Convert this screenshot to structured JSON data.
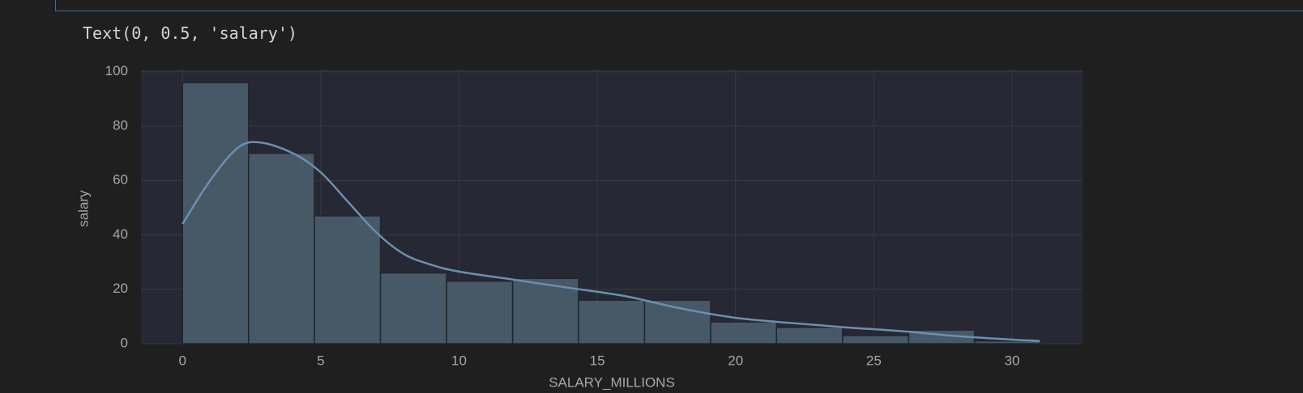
{
  "output_text": "Text(0, 0.5, 'salary')",
  "chart_data": {
    "type": "histogram",
    "x_label": "SALARY_MILLIONS",
    "y_label": "salary",
    "bins": [
      0,
      2.39,
      4.77,
      7.16,
      9.55,
      11.94,
      14.32,
      16.71,
      19.1,
      21.48,
      23.87,
      26.26,
      28.64,
      31.03
    ],
    "values": [
      96,
      70,
      47,
      26,
      23,
      24,
      16,
      16,
      8,
      6,
      3,
      5,
      1
    ],
    "color": "#475866",
    "kde": {
      "color": "#6a90b0",
      "x": [
        0,
        1,
        2,
        2.8,
        4,
        5,
        6,
        7,
        8,
        9,
        10,
        12,
        14,
        16,
        18,
        20,
        22,
        24,
        26,
        28,
        30,
        31
      ],
      "values": [
        44,
        60,
        72,
        74,
        70,
        63,
        52,
        41,
        33,
        29,
        26.5,
        23.5,
        20.5,
        17.5,
        13,
        9.5,
        7.6,
        6,
        4.6,
        2.8,
        1.5,
        1
      ]
    },
    "xlim": [
      -1.5,
      32.55
    ],
    "ylim": [
      0,
      100.8
    ],
    "xticks": [
      0,
      5,
      10,
      15,
      20,
      25,
      30
    ],
    "yticks": [
      0,
      20,
      40,
      60,
      80,
      100
    ],
    "grid": true
  }
}
